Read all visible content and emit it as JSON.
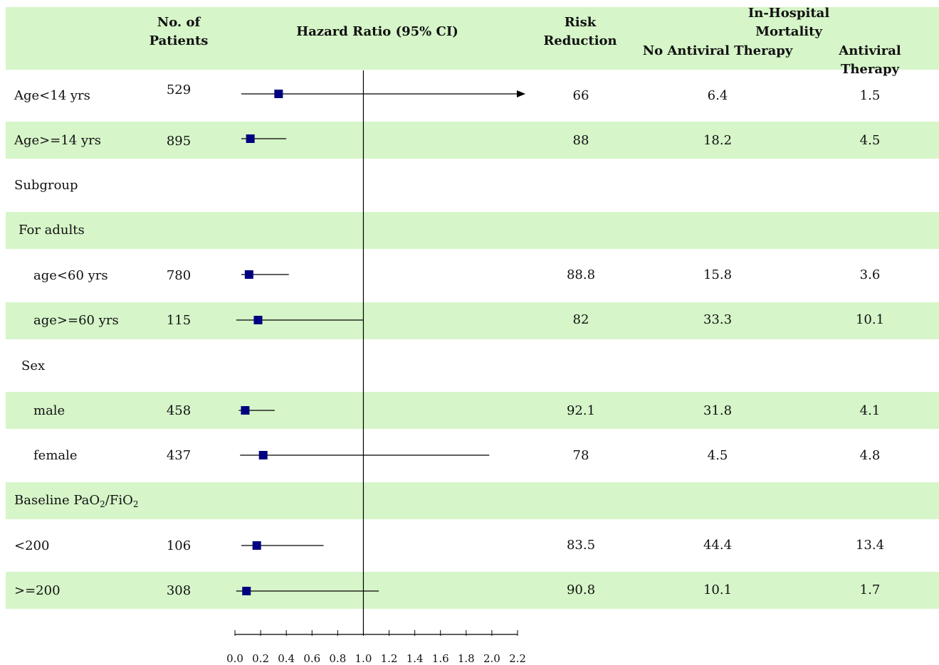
{
  "header": {
    "patients": "No. of\nPatients",
    "hazard": "Hazard Ratio (95% CI)",
    "risk": "Risk\nReduction",
    "mortality": "In-Hospital Mortality",
    "no_antiviral": "No Antiviral Therapy",
    "antiviral": "Antiviral Therapy"
  },
  "section_labels": {
    "subgroup": "Subgroup",
    "adults": "For adults",
    "sex": "Sex",
    "baseline_prefix": "Baseline PaO",
    "baseline_sub1": "2",
    "baseline_mid": "/FiO",
    "baseline_sub2": "2"
  },
  "rows": [
    {
      "label": "Age<14 yrs",
      "n": "529",
      "risk": "66",
      "no_av": "6.4",
      "av": "1.5"
    },
    {
      "label": "Age>=14 yrs",
      "n": "895",
      "risk": "88",
      "no_av": "18.2",
      "av": "4.5"
    },
    {
      "label": "age<60 yrs",
      "n": "780",
      "risk": "88.8",
      "no_av": "15.8",
      "av": "3.6"
    },
    {
      "label": "age>=60 yrs",
      "n": "115",
      "risk": "82",
      "no_av": "33.3",
      "av": "10.1"
    },
    {
      "label": "male",
      "n": "458",
      "risk": "92.1",
      "no_av": "31.8",
      "av": "4.1"
    },
    {
      "label": "female",
      "n": "437",
      "risk": "78",
      "no_av": "4.5",
      "av": "4.8"
    },
    {
      "label": "<200",
      "n": "106",
      "risk": "83.5",
      "no_av": "44.4",
      "av": "13.4"
    },
    {
      "label": ">=200",
      "n": "308",
      "risk": "90.8",
      "no_av": "10.1",
      "av": "1.7"
    }
  ],
  "chart_data": {
    "type": "scatter",
    "xlabel": "",
    "xlim": [
      0.0,
      2.2
    ],
    "xticks": [
      "0.0",
      "0.2",
      "0.4",
      "0.6",
      "0.8",
      "1.0",
      "1.2",
      "1.4",
      "1.6",
      "1.8",
      "2.0",
      "2.2"
    ],
    "reference_line": 1.0,
    "series": [
      {
        "label": "Age<14 yrs",
        "hr": 0.34,
        "lo": 0.05,
        "hi": 2.2,
        "arrow": true
      },
      {
        "label": "Age>=14 yrs",
        "hr": 0.12,
        "lo": 0.05,
        "hi": 0.4
      },
      {
        "label": "age<60 yrs",
        "hr": 0.11,
        "lo": 0.05,
        "hi": 0.42
      },
      {
        "label": "age>=60 yrs",
        "hr": 0.18,
        "lo": 0.01,
        "hi": 1.0
      },
      {
        "label": "male",
        "hr": 0.08,
        "lo": 0.03,
        "hi": 0.31
      },
      {
        "label": "female",
        "hr": 0.22,
        "lo": 0.04,
        "hi": 1.98
      },
      {
        "label": "<200",
        "hr": 0.17,
        "lo": 0.05,
        "hi": 0.69
      },
      {
        "label": ">=200",
        "hr": 0.09,
        "lo": 0.01,
        "hi": 1.12
      }
    ],
    "colors": {
      "marker": "#000080",
      "line": "#000000",
      "band": "#d6f5c9"
    }
  }
}
